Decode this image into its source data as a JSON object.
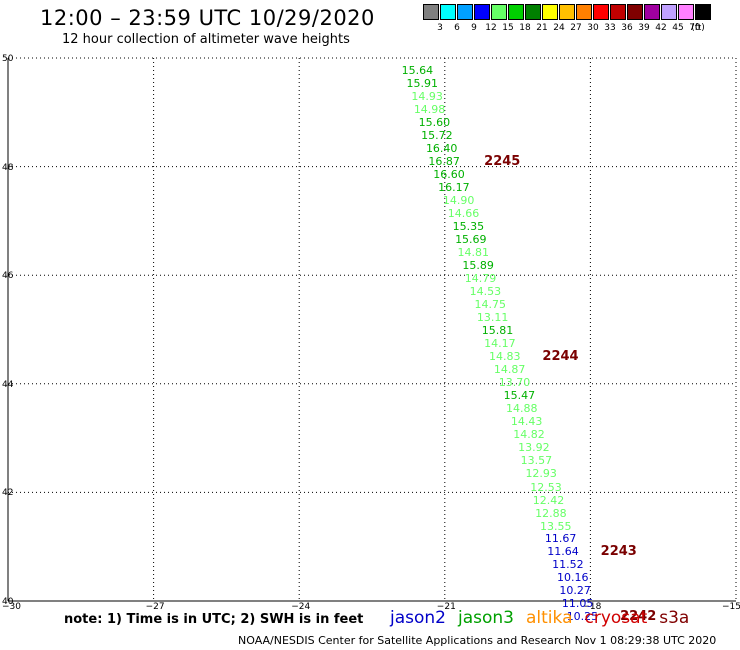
{
  "header": {
    "title": "12:00 – 23:59 UTC 10/29/2020",
    "subtitle": "12 hour collection of altimeter wave heights"
  },
  "colorbar": {
    "unit_label": "(ft)",
    "bins": [
      {
        "label": "3",
        "color": "#808080"
      },
      {
        "label": "6",
        "color": "#00ffff"
      },
      {
        "label": "9",
        "color": "#00a0ff"
      },
      {
        "label": "12",
        "color": "#0000ff"
      },
      {
        "label": "15",
        "color": "#66ff66"
      },
      {
        "label": "18",
        "color": "#00d000"
      },
      {
        "label": "21",
        "color": "#008000"
      },
      {
        "label": "24",
        "color": "#ffff00"
      },
      {
        "label": "27",
        "color": "#ffc000"
      },
      {
        "label": "30",
        "color": "#ff8000"
      },
      {
        "label": "33",
        "color": "#ff0000"
      },
      {
        "label": "36",
        "color": "#c00000"
      },
      {
        "label": "39",
        "color": "#800000"
      },
      {
        "label": "42",
        "color": "#a000a0"
      },
      {
        "label": "45",
        "color": "#c0a0ff"
      },
      {
        "label": "70",
        "color": "#ff80ff"
      },
      {
        "label": "",
        "color": "#000000"
      }
    ]
  },
  "axes": {
    "lon_labels": [
      "−30",
      "−27",
      "−24",
      "−21",
      "−18",
      "−15"
    ],
    "lon_values": [
      -30,
      -27,
      -24,
      -21,
      -18,
      -15
    ],
    "lat_labels": [
      "50",
      "48",
      "46",
      "44",
      "42",
      "40"
    ],
    "lat_values": [
      50,
      48,
      46,
      44,
      42,
      40
    ],
    "lon_range": [
      -30,
      -15
    ],
    "lat_range": [
      40,
      50
    ]
  },
  "observations": [
    {
      "value": "15.64",
      "lon": -21.6,
      "lat": 49.76,
      "color": "#00b000"
    },
    {
      "value": "15.91",
      "lon": -21.5,
      "lat": 49.52,
      "color": "#00b000"
    },
    {
      "value": "14.93",
      "lon": -21.4,
      "lat": 49.28,
      "color": "#66ff66"
    },
    {
      "value": "14.98",
      "lon": -21.35,
      "lat": 49.04,
      "color": "#66ff66"
    },
    {
      "value": "15.60",
      "lon": -21.25,
      "lat": 48.81,
      "color": "#00b000"
    },
    {
      "value": "15.72",
      "lon": -21.2,
      "lat": 48.57,
      "color": "#00b000"
    },
    {
      "value": "16.40",
      "lon": -21.1,
      "lat": 48.33,
      "color": "#00b000"
    },
    {
      "value": "16.87",
      "lon": -21.05,
      "lat": 48.09,
      "color": "#00b000"
    },
    {
      "value": "16.60",
      "lon": -20.95,
      "lat": 47.85,
      "color": "#00b000"
    },
    {
      "value": "16.17",
      "lon": -20.85,
      "lat": 47.61,
      "color": "#00b000"
    },
    {
      "value": "14.90",
      "lon": -20.75,
      "lat": 47.37,
      "color": "#66ff66"
    },
    {
      "value": "14.66",
      "lon": -20.65,
      "lat": 47.13,
      "color": "#66ff66"
    },
    {
      "value": "15.35",
      "lon": -20.55,
      "lat": 46.89,
      "color": "#00b000"
    },
    {
      "value": "15.69",
      "lon": -20.5,
      "lat": 46.65,
      "color": "#00b000"
    },
    {
      "value": "14.81",
      "lon": -20.45,
      "lat": 46.41,
      "color": "#66ff66"
    },
    {
      "value": "15.89",
      "lon": -20.35,
      "lat": 46.17,
      "color": "#00b000"
    },
    {
      "value": "14.79",
      "lon": -20.3,
      "lat": 45.93,
      "color": "#66ff66"
    },
    {
      "value": "14.53",
      "lon": -20.2,
      "lat": 45.69,
      "color": "#66ff66"
    },
    {
      "value": "14.75",
      "lon": -20.1,
      "lat": 45.45,
      "color": "#66ff66"
    },
    {
      "value": "13.11",
      "lon": -20.05,
      "lat": 45.21,
      "color": "#66ff66"
    },
    {
      "value": "15.81",
      "lon": -19.95,
      "lat": 44.97,
      "color": "#00b000"
    },
    {
      "value": "14.17",
      "lon": -19.9,
      "lat": 44.73,
      "color": "#66ff66"
    },
    {
      "value": "14.83",
      "lon": -19.8,
      "lat": 44.49,
      "color": "#66ff66"
    },
    {
      "value": "14.87",
      "lon": -19.7,
      "lat": 44.25,
      "color": "#66ff66"
    },
    {
      "value": "13.70",
      "lon": -19.6,
      "lat": 44.01,
      "color": "#66ff66"
    },
    {
      "value": "15.47",
      "lon": -19.5,
      "lat": 43.77,
      "color": "#00b000"
    },
    {
      "value": "14.88",
      "lon": -19.45,
      "lat": 43.53,
      "color": "#66ff66"
    },
    {
      "value": "14.43",
      "lon": -19.35,
      "lat": 43.29,
      "color": "#66ff66"
    },
    {
      "value": "14.82",
      "lon": -19.3,
      "lat": 43.05,
      "color": "#66ff66"
    },
    {
      "value": "13.92",
      "lon": -19.2,
      "lat": 42.81,
      "color": "#66ff66"
    },
    {
      "value": "13.57",
      "lon": -19.15,
      "lat": 42.57,
      "color": "#66ff66"
    },
    {
      "value": "12.93",
      "lon": -19.05,
      "lat": 42.33,
      "color": "#66ff66"
    },
    {
      "value": "12.53",
      "lon": -18.95,
      "lat": 42.09,
      "color": "#66ff66"
    },
    {
      "value": "12.42",
      "lon": -18.9,
      "lat": 41.85,
      "color": "#66ff66"
    },
    {
      "value": "12.88",
      "lon": -18.85,
      "lat": 41.61,
      "color": "#66ff66"
    },
    {
      "value": "13.55",
      "lon": -18.75,
      "lat": 41.37,
      "color": "#66ff66"
    },
    {
      "value": "11.67",
      "lon": -18.65,
      "lat": 41.14,
      "color": "#0000c8"
    },
    {
      "value": "11.64",
      "lon": -18.6,
      "lat": 40.9,
      "color": "#0000c8"
    },
    {
      "value": "11.52",
      "lon": -18.5,
      "lat": 40.66,
      "color": "#0000c8"
    },
    {
      "value": "10.16",
      "lon": -18.4,
      "lat": 40.42,
      "color": "#0000c8"
    },
    {
      "value": "10.27",
      "lon": -18.35,
      "lat": 40.18,
      "color": "#0000c8"
    },
    {
      "value": "11.05",
      "lon": -18.3,
      "lat": 39.95,
      "color": "#0000c8"
    },
    {
      "value": "10.25",
      "lon": -18.2,
      "lat": 39.71,
      "color": "#0000c8"
    }
  ],
  "pass_times": [
    {
      "label": "2245",
      "lon": -19.9,
      "lat": 48.09
    },
    {
      "label": "2244",
      "lon": -18.7,
      "lat": 44.49
    },
    {
      "label": "2243",
      "lon": -17.5,
      "lat": 40.9
    },
    {
      "label": "2242",
      "lon": -17.1,
      "lat": 39.71
    }
  ],
  "footer": {
    "note": "note: 1) Time is in UTC; 2) SWH is in feet",
    "satellites": [
      {
        "name": "jason2",
        "color": "#0000c8"
      },
      {
        "name": "jason3",
        "color": "#00a000"
      },
      {
        "name": "altika",
        "color": "#ff9000"
      },
      {
        "name": "cryosat",
        "color": "#d00000"
      },
      {
        "name": "s3a",
        "color": "#800000"
      }
    ],
    "credit": "NOAA/NESDIS Center for Satellite Applications and Research    Nov  1 08:29:38 UTC 2020"
  }
}
